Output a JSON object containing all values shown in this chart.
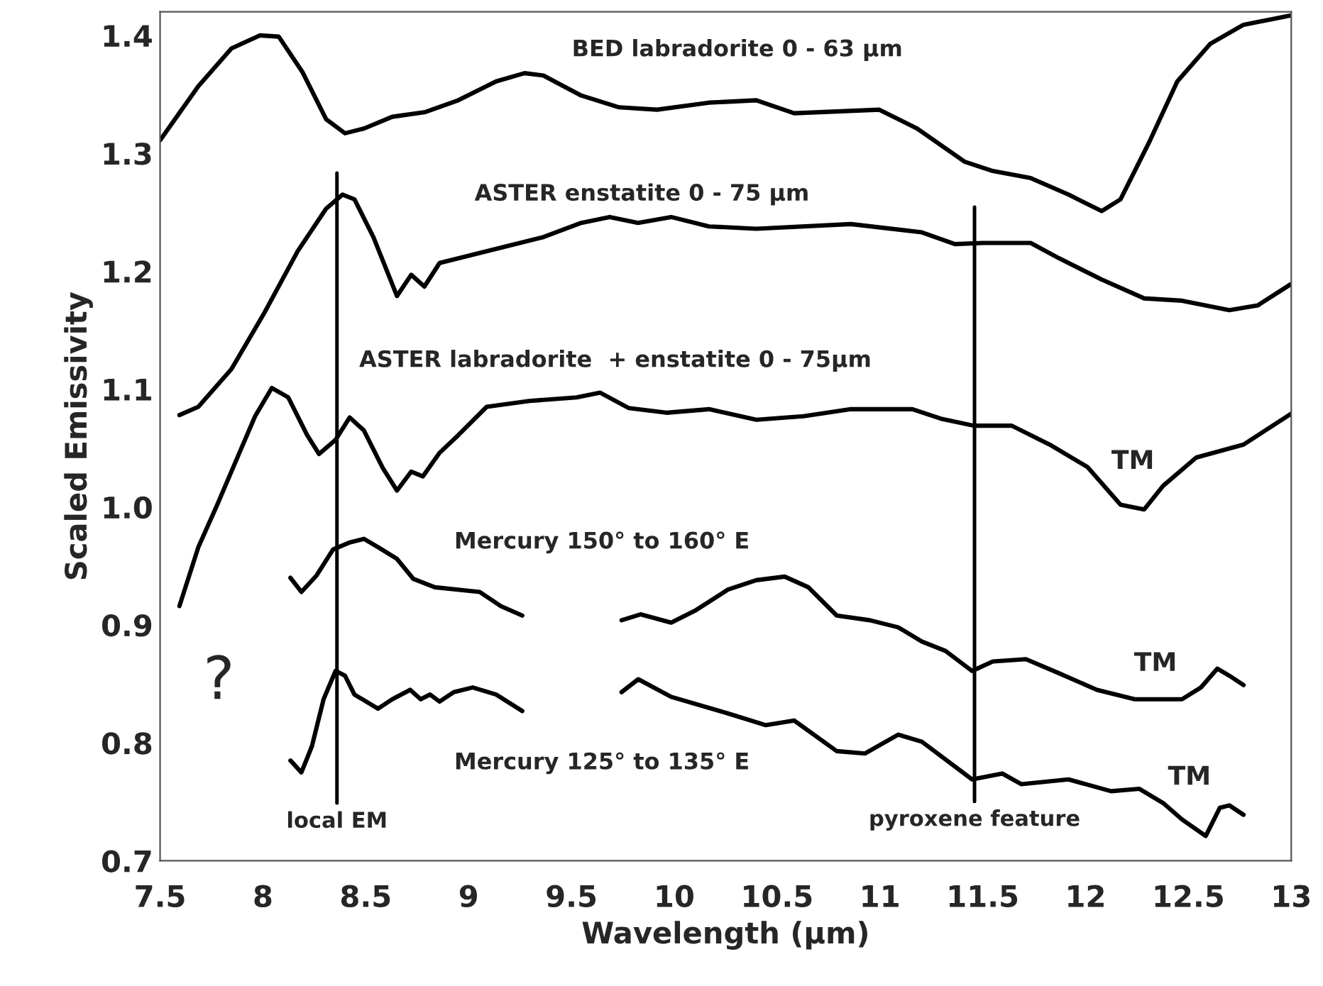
{
  "chart_data": {
    "type": "line",
    "xlabel": "Wavelength (µm)",
    "ylabel": "Scaled Emissivity",
    "xlim": [
      7.5,
      13
    ],
    "xticks": [
      7.5,
      8,
      8.5,
      9,
      9.5,
      10,
      10.5,
      11,
      11.5,
      12,
      12.5,
      13
    ],
    "ylim": [
      0.7,
      1.42
    ],
    "yticks": [
      0.7,
      0.8,
      0.9,
      {
        "value": 1,
        "label": "1.0"
      },
      1.1,
      1.2,
      1.3,
      1.4
    ],
    "grid": false,
    "legend": false,
    "marker": "none",
    "line_style": "solid",
    "series": [
      {
        "color": "#000000",
        "x": [
          7.5,
          7.686,
          7.847,
          7.985,
          8.077,
          8.192,
          8.307,
          8.399,
          8.491,
          8.629,
          8.79,
          8.95,
          9.134,
          9.272,
          9.364,
          9.548,
          9.732,
          9.916,
          10.169,
          10.399,
          10.583,
          10.997,
          11.181,
          11.411,
          11.549,
          11.733,
          11.917,
          12.078,
          12.17,
          12.308,
          12.446,
          12.607,
          12.768,
          12.998
        ],
        "values": [
          1.311,
          1.357,
          1.389,
          1.4,
          1.399,
          1.369,
          1.329,
          1.317,
          1.321,
          1.331,
          1.335,
          1.345,
          1.361,
          1.368,
          1.366,
          1.349,
          1.339,
          1.337,
          1.343,
          1.345,
          1.334,
          1.337,
          1.321,
          1.293,
          1.285,
          1.279,
          1.265,
          1.251,
          1.261,
          1.309,
          1.361,
          1.393,
          1.409,
          1.417
        ]
      },
      {
        "color": "#000000",
        "x": [
          7.594,
          7.686,
          7.847,
          8.008,
          8.169,
          8.307,
          8.387,
          8.445,
          8.537,
          8.652,
          8.721,
          8.785,
          8.859,
          8.997,
          9.18,
          9.364,
          9.548,
          9.686,
          9.824,
          9.985,
          10.169,
          10.399,
          10.859,
          11.204,
          11.365,
          11.503,
          11.733,
          11.871,
          12.078,
          12.285,
          12.469,
          12.699,
          12.837,
          12.998
        ],
        "values": [
          1.078,
          1.085,
          1.117,
          1.165,
          1.217,
          1.253,
          1.265,
          1.261,
          1.229,
          1.179,
          1.197,
          1.187,
          1.207,
          1.213,
          1.221,
          1.229,
          1.241,
          1.246,
          1.241,
          1.246,
          1.238,
          1.236,
          1.24,
          1.233,
          1.223,
          1.224,
          1.224,
          1.211,
          1.193,
          1.177,
          1.175,
          1.167,
          1.171,
          1.189
        ]
      },
      {
        "color": "#000000",
        "x": [
          7.594,
          7.686,
          7.778,
          7.893,
          7.962,
          8.043,
          8.123,
          8.215,
          8.273,
          8.353,
          8.422,
          8.491,
          8.583,
          8.652,
          8.721,
          8.778,
          8.859,
          8.95,
          9.088,
          9.295,
          9.525,
          9.64,
          9.778,
          9.962,
          10.169,
          10.399,
          10.629,
          10.859,
          11.158,
          11.296,
          11.457,
          11.641,
          11.825,
          12.009,
          12.17,
          12.285,
          12.377,
          12.538,
          12.768,
          12.998
        ],
        "values": [
          0.916,
          0.966,
          1.002,
          1.049,
          1.077,
          1.101,
          1.093,
          1.061,
          1.045,
          1.057,
          1.076,
          1.065,
          1.033,
          1.014,
          1.03,
          1.026,
          1.046,
          1.061,
          1.085,
          1.09,
          1.093,
          1.097,
          1.084,
          1.08,
          1.083,
          1.074,
          1.077,
          1.083,
          1.083,
          1.075,
          1.069,
          1.069,
          1.053,
          1.034,
          1.002,
          0.998,
          1.018,
          1.042,
          1.053,
          1.079
        ]
      },
      {
        "color": "#000000",
        "x": [
          8.134,
          8.187,
          8.261,
          8.341,
          8.422,
          8.491,
          8.56,
          8.652,
          8.732,
          8.836,
          8.997,
          9.054,
          9.157,
          9.261,
          9.5,
          9.744,
          9.836,
          9.985,
          10.1,
          10.261,
          10.399,
          10.537,
          10.652,
          10.79,
          10.951,
          11.089,
          11.204,
          11.319,
          11.448,
          11.549,
          11.71,
          11.871,
          12.055,
          12.239,
          12.469,
          12.561,
          12.641,
          12.699,
          12.768
        ],
        "values": [
          0.94,
          0.928,
          0.942,
          0.964,
          0.97,
          0.973,
          0.966,
          0.956,
          0.939,
          0.932,
          0.929,
          0.928,
          0.916,
          0.908,
          null,
          0.904,
          0.909,
          0.902,
          0.912,
          0.93,
          0.938,
          0.941,
          0.932,
          0.908,
          0.904,
          0.898,
          0.886,
          0.878,
          0.861,
          0.869,
          0.871,
          0.859,
          0.845,
          0.837,
          0.837,
          0.847,
          0.863,
          0.857,
          0.849
        ]
      },
      {
        "color": "#000000",
        "x": [
          8.134,
          8.187,
          8.238,
          8.295,
          8.353,
          8.399,
          8.445,
          8.56,
          8.629,
          8.716,
          8.767,
          8.813,
          8.859,
          8.928,
          9.02,
          9.134,
          9.261,
          9.5,
          9.744,
          9.825,
          9.985,
          10.261,
          10.445,
          10.583,
          10.79,
          10.928,
          11.089,
          11.204,
          11.448,
          11.595,
          11.687,
          11.917,
          12.124,
          12.262,
          12.377,
          12.469,
          12.584,
          12.653,
          12.699,
          12.768
        ],
        "values": [
          0.785,
          0.775,
          0.797,
          0.837,
          0.861,
          0.857,
          0.841,
          0.829,
          0.837,
          0.845,
          0.837,
          0.841,
          0.835,
          0.843,
          0.847,
          0.841,
          0.827,
          null,
          0.843,
          0.854,
          0.839,
          0.825,
          0.815,
          0.819,
          0.793,
          0.791,
          0.807,
          0.801,
          0.769,
          0.774,
          0.765,
          0.769,
          0.759,
          0.761,
          0.749,
          0.735,
          0.721,
          0.745,
          0.747,
          0.739
        ]
      }
    ],
    "ref_lines": [
      {
        "axis": "x",
        "value": 8.36,
        "label": "local EM",
        "color": "#000000"
      },
      {
        "axis": "x",
        "value": 11.46,
        "label": "pyroxene feature",
        "color": "#000000"
      }
    ],
    "annotations": [
      "BED labradorite 0 - 63 µm",
      "ASTER enstatite 0 - 75 µm",
      "ASTER labradorite  + enstatite 0 - 75µm",
      "Mercury 150° to 160° E",
      "Mercury 125° to 135° E",
      "TM",
      "TM",
      "TM",
      "?"
    ]
  }
}
